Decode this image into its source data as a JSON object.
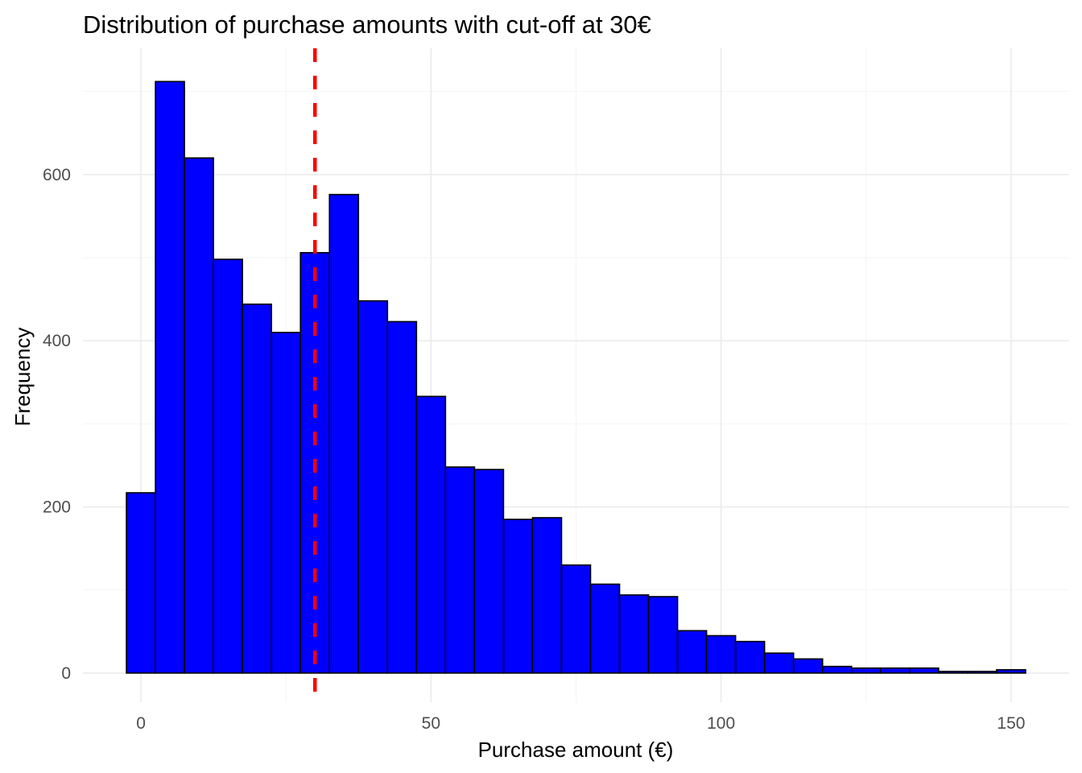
{
  "chart_data": {
    "type": "bar",
    "title": "Distribution of purchase amounts with cut-off at 30€",
    "xlabel": "Purchase amount (€)",
    "ylabel": "Frequency",
    "bin_width": 5,
    "bins": [
      {
        "x0": -2.5,
        "x1": 2.5,
        "count": 217
      },
      {
        "x0": 2.5,
        "x1": 7.5,
        "count": 712
      },
      {
        "x0": 7.5,
        "x1": 12.5,
        "count": 620
      },
      {
        "x0": 12.5,
        "x1": 17.5,
        "count": 498
      },
      {
        "x0": 17.5,
        "x1": 22.5,
        "count": 444
      },
      {
        "x0": 22.5,
        "x1": 27.5,
        "count": 410
      },
      {
        "x0": 27.5,
        "x1": 32.5,
        "count": 506
      },
      {
        "x0": 32.5,
        "x1": 37.5,
        "count": 576
      },
      {
        "x0": 37.5,
        "x1": 42.5,
        "count": 448
      },
      {
        "x0": 42.5,
        "x1": 47.5,
        "count": 423
      },
      {
        "x0": 47.5,
        "x1": 52.5,
        "count": 333
      },
      {
        "x0": 52.5,
        "x1": 57.5,
        "count": 248
      },
      {
        "x0": 57.5,
        "x1": 62.5,
        "count": 245
      },
      {
        "x0": 62.5,
        "x1": 67.5,
        "count": 185
      },
      {
        "x0": 67.5,
        "x1": 72.5,
        "count": 187
      },
      {
        "x0": 72.5,
        "x1": 77.5,
        "count": 130
      },
      {
        "x0": 77.5,
        "x1": 82.5,
        "count": 107
      },
      {
        "x0": 82.5,
        "x1": 87.5,
        "count": 94
      },
      {
        "x0": 87.5,
        "x1": 92.5,
        "count": 92
      },
      {
        "x0": 92.5,
        "x1": 97.5,
        "count": 51
      },
      {
        "x0": 97.5,
        "x1": 102.5,
        "count": 45
      },
      {
        "x0": 102.5,
        "x1": 107.5,
        "count": 38
      },
      {
        "x0": 107.5,
        "x1": 112.5,
        "count": 24
      },
      {
        "x0": 112.5,
        "x1": 117.5,
        "count": 17
      },
      {
        "x0": 117.5,
        "x1": 122.5,
        "count": 8
      },
      {
        "x0": 122.5,
        "x1": 127.5,
        "count": 6
      },
      {
        "x0": 127.5,
        "x1": 132.5,
        "count": 6
      },
      {
        "x0": 132.5,
        "x1": 137.5,
        "count": 6
      },
      {
        "x0": 137.5,
        "x1": 142.5,
        "count": 2
      },
      {
        "x0": 142.5,
        "x1": 147.5,
        "count": 2
      },
      {
        "x0": 147.5,
        "x1": 152.5,
        "count": 4
      }
    ],
    "xlim": [
      -10,
      160
    ],
    "ylim": [
      -35,
      752
    ],
    "x_ticks": [
      0,
      50,
      100,
      150
    ],
    "x_tick_labels": [
      "0",
      "50",
      "100",
      "150"
    ],
    "y_ticks": [
      0,
      200,
      400,
      600
    ],
    "y_tick_labels": [
      "0",
      "200",
      "400",
      "600"
    ],
    "x_minor_ticks": [
      25,
      75,
      125
    ],
    "y_minor_ticks": [
      100,
      300,
      500,
      700
    ],
    "cutoff": {
      "value": 30,
      "color": "#ff0000",
      "style": "dashed"
    },
    "bar_fill": "#0000ff",
    "bar_outline": "#000000",
    "grid": true,
    "legend": "none"
  }
}
